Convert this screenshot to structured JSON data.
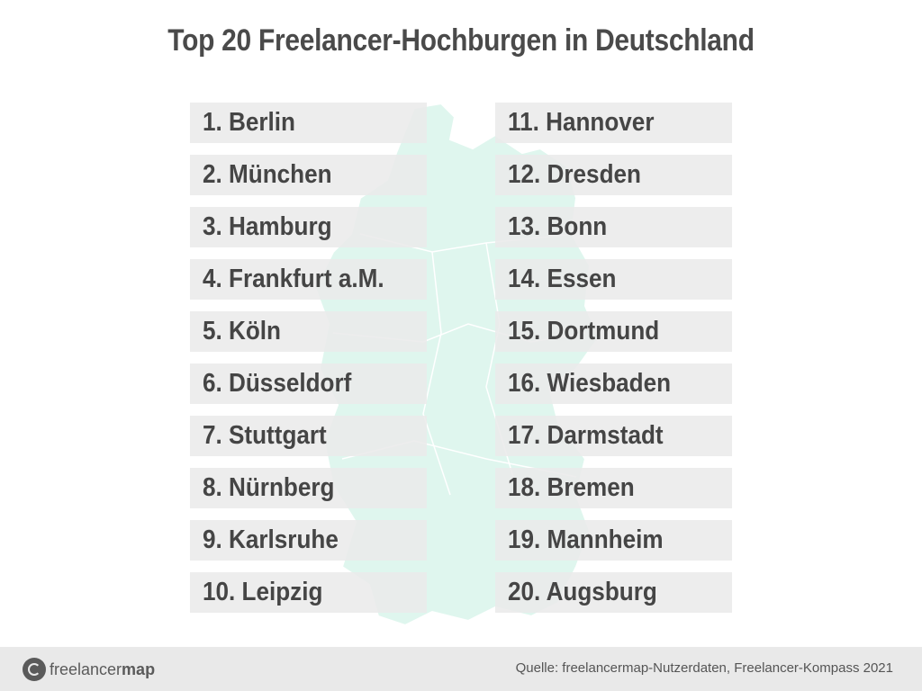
{
  "title": "Top 20 Freelancer-Hochburgen in Deutschland",
  "left_column": [
    "1. Berlin",
    "2. München",
    "3. Hamburg",
    "4. Frankfurt a.M.",
    "5. Köln",
    "6. Düsseldorf",
    "7. Stuttgart",
    "8. Nürnberg",
    "9. Karlsruhe",
    "10. Leipzig"
  ],
  "right_column": [
    "11. Hannover",
    "12. Dresden",
    "13. Bonn",
    "14. Essen",
    "15. Dortmund",
    "16. Wiesbaden",
    "17. Darmstadt",
    "18. Bremen",
    "19. Mannheim",
    "20. Augsburg"
  ],
  "footer": {
    "logo_text_regular": "freelancer",
    "logo_text_bold": "map",
    "source": "Quelle: freelancermap-Nutzerdaten, Freelancer-Kompass 2021"
  },
  "colors": {
    "map_fill": "#dff6ee",
    "row_bg": "#ebebeb",
    "text": "#454545",
    "footer_bg": "#e9e9e9"
  },
  "icons": {
    "logo": "freelancermap-logo-icon",
    "background": "germany-map-icon"
  }
}
